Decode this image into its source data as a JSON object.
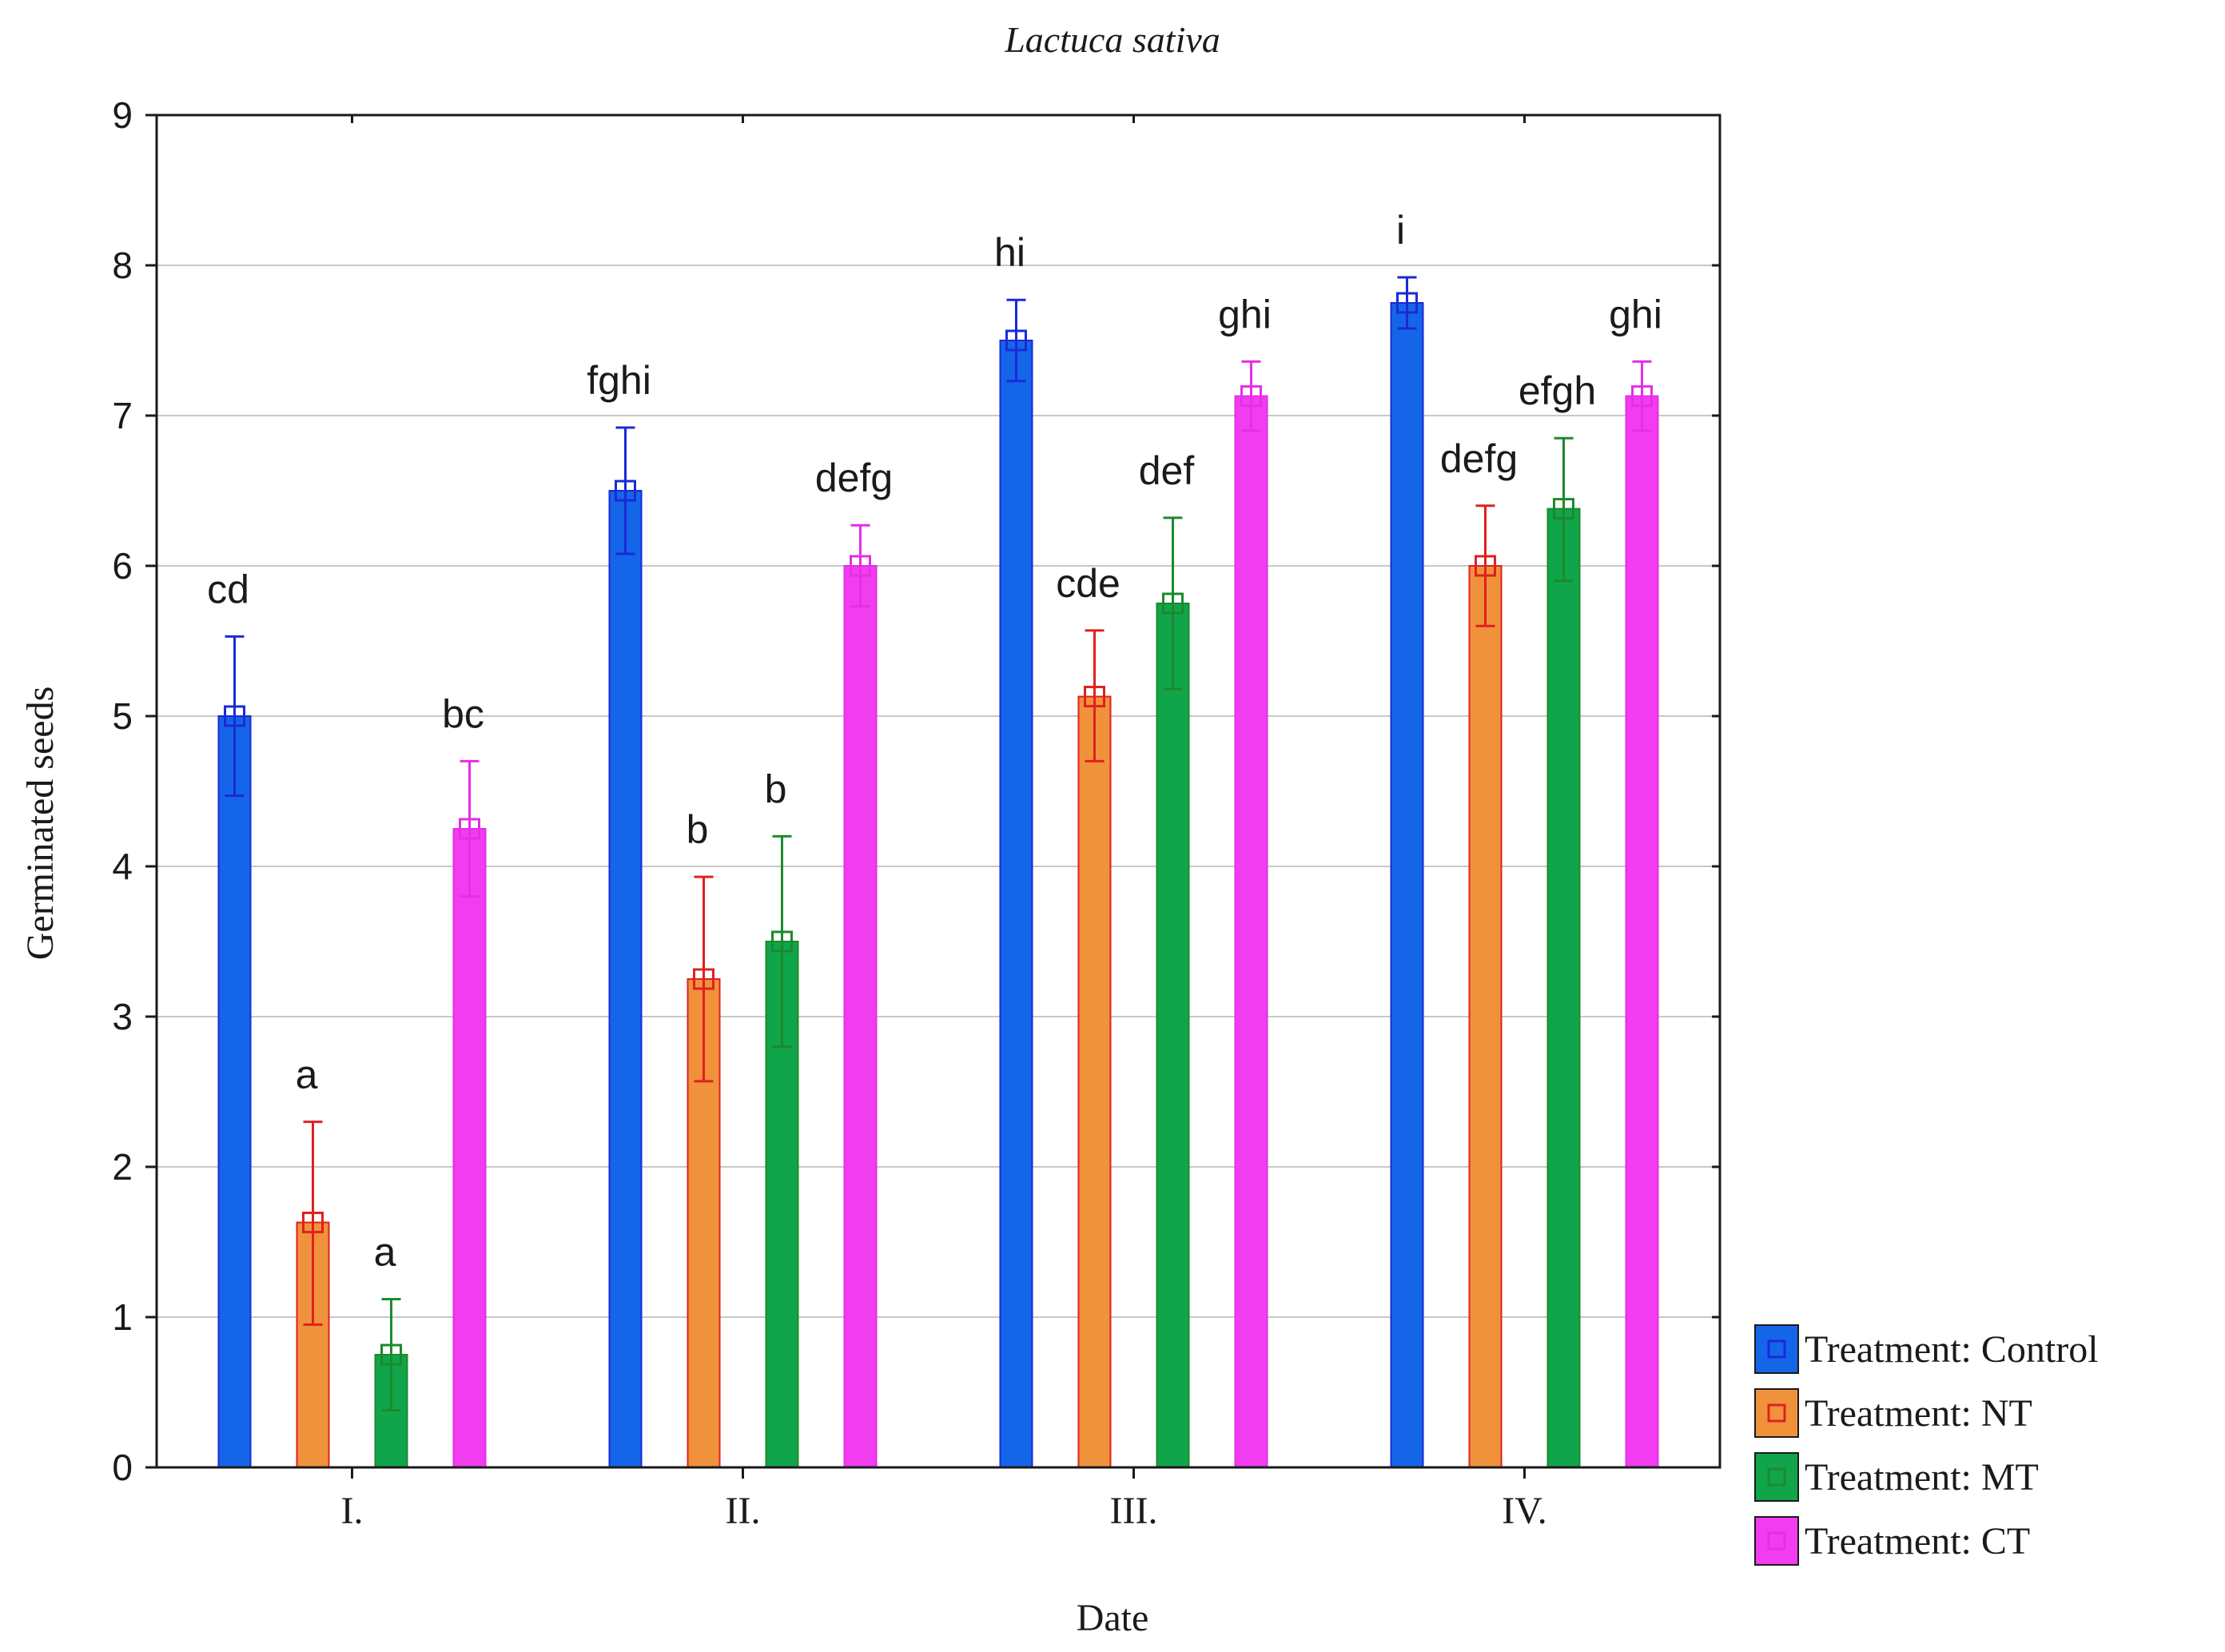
{
  "chart_data": {
    "type": "bar",
    "title": "Lactuca sativa",
    "xlabel": "Date",
    "ylabel": "Germinated seeds",
    "ylim": [
      0,
      9
    ],
    "yticks": [
      "0",
      "1",
      "2",
      "3",
      "4",
      "5",
      "6",
      "7",
      "8",
      "9"
    ],
    "grid": true,
    "legend_position": "bottom-right, outside plot",
    "categories": [
      "I.",
      "II.",
      "III.",
      "IV."
    ],
    "series": [
      {
        "name": "Treatment: Control",
        "color": "#1565e8",
        "values": [
          5.0,
          6.5,
          7.5,
          7.75
        ],
        "error_low": [
          4.47,
          6.08,
          7.23,
          7.58
        ],
        "error_high": [
          5.53,
          6.92,
          7.77,
          7.92
        ],
        "letters": [
          "cd",
          "fghi",
          "hi",
          "i"
        ]
      },
      {
        "name": "Treatment: NT",
        "color": "#f0923c",
        "values": [
          1.63,
          3.25,
          5.13,
          6.0
        ],
        "error_low": [
          0.95,
          2.57,
          4.7,
          5.6
        ],
        "error_high": [
          2.3,
          3.93,
          5.57,
          6.4
        ],
        "letters": [
          "a",
          "b",
          "cde",
          "defg"
        ]
      },
      {
        "name": "Treatment: MT",
        "color": "#10a54a",
        "values": [
          0.75,
          3.5,
          5.75,
          6.38
        ],
        "error_low": [
          0.38,
          2.8,
          5.18,
          5.9
        ],
        "error_high": [
          1.12,
          4.2,
          6.32,
          6.85
        ],
        "letters": [
          "a",
          "b",
          "def",
          "efgh"
        ]
      },
      {
        "name": "Treatment: CT",
        "color": "#f23cf0",
        "values": [
          4.25,
          6.0,
          7.13,
          7.13
        ],
        "error_low": [
          3.8,
          5.73,
          6.9,
          6.9
        ],
        "error_high": [
          4.7,
          6.27,
          7.36,
          7.36
        ],
        "letters": [
          "bc",
          "defg",
          "ghi",
          "ghi"
        ]
      }
    ]
  },
  "styles": {
    "error_colors": [
      "#1a2ad8",
      "#e02020",
      "#1c8a2c",
      "#e62ee6"
    ],
    "grid_color": "#c8c8c8",
    "axis_color": "#1a1a1a"
  }
}
